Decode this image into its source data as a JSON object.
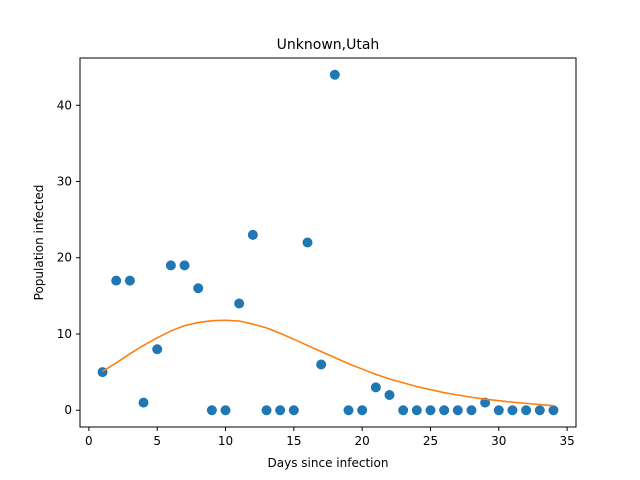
{
  "chart_data": {
    "type": "scatter",
    "title": "Unknown,Utah",
    "xlabel": "Days since infection",
    "ylabel": "Population infected",
    "xlim": [
      -0.65,
      35.65
    ],
    "ylim": [
      -2.2,
      46.2
    ],
    "xticks": [
      0,
      5,
      10,
      15,
      20,
      25,
      30,
      35
    ],
    "yticks": [
      0,
      10,
      20,
      30,
      40
    ],
    "grid": false,
    "series": [
      {
        "kind": "scatter",
        "color": "#1f77b4",
        "x": [
          1,
          2,
          3,
          4,
          5,
          6,
          7,
          8,
          9,
          10,
          11,
          12,
          13,
          14,
          15,
          16,
          17,
          18,
          19,
          20,
          21,
          22,
          23,
          24,
          25,
          26,
          27,
          28,
          29,
          30,
          31,
          32,
          33,
          34
        ],
        "y": [
          5,
          17,
          17,
          1,
          8,
          19,
          19,
          16,
          0,
          0,
          14,
          23,
          0,
          0,
          0,
          22,
          6,
          44,
          0,
          0,
          3,
          2,
          0,
          0,
          0,
          0,
          0,
          0,
          1,
          0,
          0,
          0,
          0,
          0
        ]
      },
      {
        "kind": "line",
        "color": "#ff7f0e",
        "x": [
          1,
          2,
          3,
          4,
          5,
          6,
          7,
          8,
          9,
          10,
          11,
          12,
          13,
          14,
          15,
          16,
          17,
          18,
          19,
          20,
          21,
          22,
          23,
          24,
          25,
          26,
          27,
          28,
          29,
          30,
          31,
          32,
          33,
          34
        ],
        "y": [
          5.1,
          6.2,
          7.4,
          8.5,
          9.5,
          10.4,
          11.1,
          11.5,
          11.75,
          11.8,
          11.7,
          11.3,
          10.8,
          10.1,
          9.3,
          8.5,
          7.7,
          6.9,
          6.1,
          5.4,
          4.7,
          4.1,
          3.6,
          3.1,
          2.7,
          2.3,
          2.0,
          1.7,
          1.45,
          1.25,
          1.05,
          0.9,
          0.75,
          0.6
        ]
      }
    ]
  }
}
